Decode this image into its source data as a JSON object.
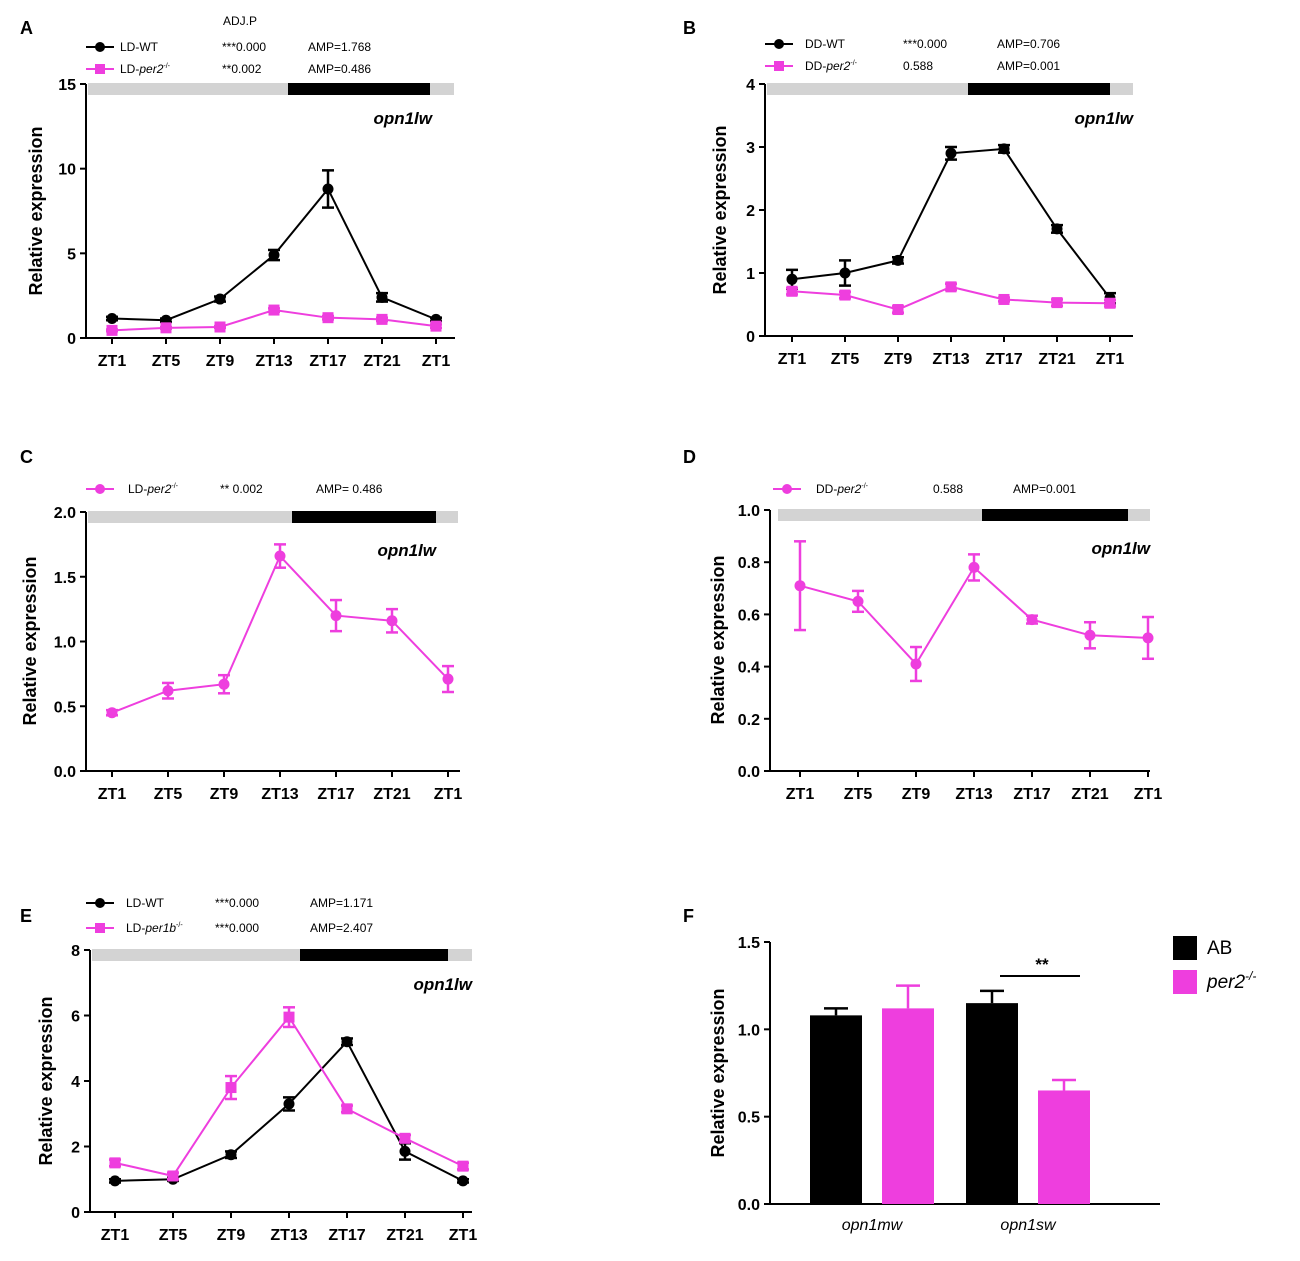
{
  "colors": {
    "wt": "#000000",
    "mut": "#ee3ede",
    "light_bar": "#d3d3d3",
    "dark_bar": "#000000"
  },
  "chart_data": [
    {
      "panel": "A",
      "type": "line",
      "gene": "opn1lw",
      "ylabel": "Relative expression",
      "ylim": [
        0,
        15
      ],
      "yticks": [
        "0",
        "5",
        "10",
        "15"
      ],
      "categories": [
        "ZT1",
        "ZT5",
        "ZT9",
        "ZT13",
        "ZT17",
        "ZT21",
        "ZT1"
      ],
      "legend_header": "ADJ.P",
      "series": [
        {
          "name": "LD-WT",
          "name_italic": "",
          "name_sup": "",
          "marker": "circle",
          "color": "#000000",
          "adjp": "***0.000",
          "amp": "AMP=1.768",
          "values": [
            1.15,
            1.05,
            2.3,
            4.9,
            8.8,
            2.4,
            1.1
          ],
          "errors": [
            0.1,
            0.1,
            0.15,
            0.3,
            1.1,
            0.25,
            0.1
          ]
        },
        {
          "name": "LD-",
          "name_italic": "per2",
          "name_sup": "-/-",
          "marker": "square",
          "color": "#ee3ede",
          "adjp": "**0.002",
          "amp": "AMP=0.486",
          "values": [
            0.45,
            0.6,
            0.65,
            1.65,
            1.2,
            1.1,
            0.7
          ],
          "errors": [
            0.05,
            0.05,
            0.05,
            0.1,
            0.1,
            0.1,
            0.1
          ]
        }
      ]
    },
    {
      "panel": "B",
      "type": "line",
      "gene": "opn1lw",
      "ylabel": "Relative expression",
      "ylim": [
        0,
        4
      ],
      "yticks": [
        "0",
        "1",
        "2",
        "3",
        "4"
      ],
      "categories": [
        "ZT1",
        "ZT5",
        "ZT9",
        "ZT13",
        "ZT17",
        "ZT21",
        "ZT1"
      ],
      "legend_header": "",
      "series": [
        {
          "name": "DD-WT",
          "name_italic": "",
          "name_sup": "",
          "marker": "circle",
          "color": "#000000",
          "adjp": "***0.000",
          "amp": "AMP=0.706",
          "values": [
            0.9,
            1.0,
            1.2,
            2.9,
            2.97,
            1.7,
            0.6
          ],
          "errors": [
            0.15,
            0.2,
            0.05,
            0.1,
            0.06,
            0.06,
            0.08
          ]
        },
        {
          "name": "DD-",
          "name_italic": "per2",
          "name_sup": "-/-",
          "marker": "square",
          "color": "#ee3ede",
          "adjp": "0.588",
          "amp": "AMP=0.001",
          "values": [
            0.71,
            0.65,
            0.42,
            0.78,
            0.58,
            0.53,
            0.52
          ],
          "errors": [
            0.05,
            0.05,
            0.05,
            0.05,
            0.03,
            0.05,
            0.05
          ]
        }
      ]
    },
    {
      "panel": "C",
      "type": "line",
      "gene": "opn1lw",
      "ylabel": "Relative expression",
      "ylim": [
        0,
        2.0
      ],
      "yticks": [
        "0.0",
        "0.5",
        "1.0",
        "1.5",
        "2.0"
      ],
      "categories": [
        "ZT1",
        "ZT5",
        "ZT9",
        "ZT13",
        "ZT17",
        "ZT21",
        "ZT1"
      ],
      "legend_header": "",
      "series": [
        {
          "name": "LD-",
          "name_italic": "per2",
          "name_sup": "-/-",
          "marker": "circle",
          "color": "#ee3ede",
          "adjp": "**  0.002",
          "amp": "AMP= 0.486",
          "values": [
            0.45,
            0.62,
            0.67,
            1.66,
            1.2,
            1.16,
            0.71
          ],
          "errors": [
            0.02,
            0.06,
            0.07,
            0.09,
            0.12,
            0.09,
            0.1
          ]
        }
      ]
    },
    {
      "panel": "D",
      "type": "line",
      "gene": "opn1lw",
      "ylabel": "Relative expression",
      "ylim": [
        0,
        1.0
      ],
      "yticks": [
        "0.0",
        "0.2",
        "0.4",
        "0.6",
        "0.8",
        "1.0"
      ],
      "categories": [
        "ZT1",
        "ZT5",
        "ZT9",
        "ZT13",
        "ZT17",
        "ZT21",
        "ZT1"
      ],
      "legend_header": "",
      "series": [
        {
          "name": "DD-",
          "name_italic": "per2",
          "name_sup": "-/-",
          "marker": "circle",
          "color": "#ee3ede",
          "adjp": "0.588",
          "amp": "AMP=0.001",
          "values": [
            0.71,
            0.65,
            0.41,
            0.78,
            0.58,
            0.52,
            0.51
          ],
          "errors": [
            0.17,
            0.04,
            0.065,
            0.05,
            0.015,
            0.05,
            0.08
          ]
        }
      ]
    },
    {
      "panel": "E",
      "type": "line",
      "gene": "opn1lw",
      "ylabel": "Relative expression",
      "ylim": [
        0,
        8
      ],
      "yticks": [
        "0",
        "2",
        "4",
        "6",
        "8"
      ],
      "categories": [
        "ZT1",
        "ZT5",
        "ZT9",
        "ZT13",
        "ZT17",
        "ZT21",
        "ZT1"
      ],
      "legend_header": "",
      "series": [
        {
          "name": "LD-WT",
          "name_italic": "",
          "name_sup": "",
          "marker": "circle",
          "color": "#000000",
          "adjp": "***0.000",
          "amp": "AMP=1.171",
          "values": [
            0.95,
            1.0,
            1.75,
            3.3,
            5.2,
            1.85,
            0.95
          ],
          "errors": [
            0.05,
            0.05,
            0.1,
            0.2,
            0.1,
            0.25,
            0.05
          ]
        },
        {
          "name": "LD-",
          "name_italic": "per1b",
          "name_sup": "-/-",
          "marker": "square",
          "color": "#ee3ede",
          "adjp": "***0.000",
          "amp": "AMP=2.407",
          "values": [
            1.5,
            1.1,
            3.8,
            5.95,
            3.15,
            2.25,
            1.4
          ],
          "errors": [
            0.1,
            0.1,
            0.35,
            0.3,
            0.1,
            0.1,
            0.1
          ]
        }
      ]
    },
    {
      "panel": "F",
      "type": "bar",
      "ylabel": "Relative expression",
      "ylim": [
        0,
        1.5
      ],
      "yticks": [
        "0.0",
        "0.5",
        "1.0",
        "1.5"
      ],
      "categories": [
        "opn1mw",
        "opn1sw"
      ],
      "significance": "**",
      "series": [
        {
          "name": "AB",
          "name_italic": "",
          "name_sup": "",
          "color": "#000000",
          "values": [
            1.08,
            1.15
          ],
          "errors": [
            0.04,
            0.07
          ]
        },
        {
          "name": "",
          "name_italic": "per2",
          "name_sup": "-/-",
          "color": "#ee3ede",
          "values": [
            1.12,
            0.65
          ],
          "errors": [
            0.13,
            0.06
          ]
        }
      ]
    }
  ]
}
